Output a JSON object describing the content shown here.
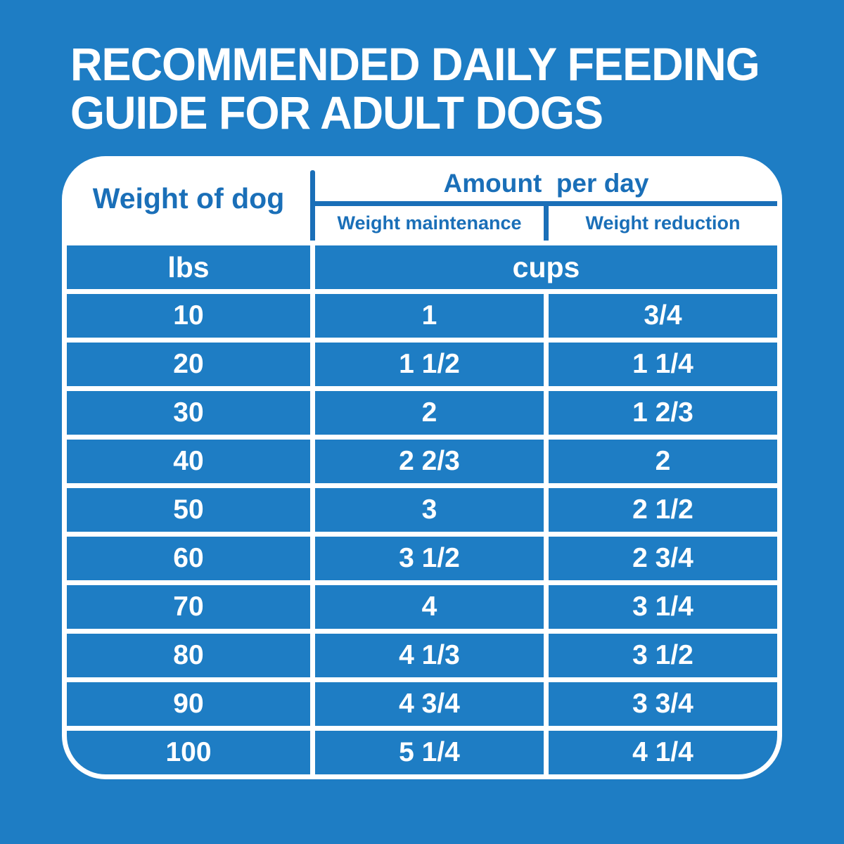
{
  "title": {
    "line1": "RECOMMENDED DAILY FEEDING",
    "line2": "GUIDE FOR ADULT DOGS"
  },
  "table": {
    "header": {
      "weight": "Weight of dog",
      "amount": "Amount  per day",
      "maintenance": "Weight maintenance",
      "reduction": "Weight reduction"
    },
    "units": {
      "weight": "lbs",
      "amount": "cups"
    },
    "rows": [
      {
        "weight": "10",
        "maintenance": "1",
        "reduction": "3/4"
      },
      {
        "weight": "20",
        "maintenance": "1 1/2",
        "reduction": "1 1/4"
      },
      {
        "weight": "30",
        "maintenance": "2",
        "reduction": "1 2/3"
      },
      {
        "weight": "40",
        "maintenance": "2 2/3",
        "reduction": "2"
      },
      {
        "weight": "50",
        "maintenance": "3",
        "reduction": "2 1/2"
      },
      {
        "weight": "60",
        "maintenance": "3 1/2",
        "reduction": "2 3/4"
      },
      {
        "weight": "70",
        "maintenance": "4",
        "reduction": "3 1/4"
      },
      {
        "weight": "80",
        "maintenance": "4 1/3",
        "reduction": "3 1/2"
      },
      {
        "weight": "90",
        "maintenance": "4 3/4",
        "reduction": "3 3/4"
      },
      {
        "weight": "100",
        "maintenance": "5 1/4",
        "reduction": "4 1/4"
      }
    ]
  },
  "colors": {
    "background_blue": "#1e7dc4",
    "header_ink_blue": "#1a6fb8",
    "card_white": "#ffffff",
    "row_text_white": "#ffffff"
  },
  "chart_data": {
    "type": "table",
    "title": "RECOMMENDED DAILY FEEDING GUIDE FOR ADULT DOGS",
    "columns": [
      "Weight of dog (lbs)",
      "Weight maintenance (cups)",
      "Weight reduction (cups)"
    ],
    "rows": [
      [
        10,
        "1",
        "3/4"
      ],
      [
        20,
        "1 1/2",
        "1 1/4"
      ],
      [
        30,
        "2",
        "1 2/3"
      ],
      [
        40,
        "2 2/3",
        "2"
      ],
      [
        50,
        "3",
        "2 1/2"
      ],
      [
        60,
        "3 1/2",
        "2 3/4"
      ],
      [
        70,
        "4",
        "3 1/4"
      ],
      [
        80,
        "4 1/3",
        "3 1/2"
      ],
      [
        90,
        "4 3/4",
        "3 3/4"
      ],
      [
        100,
        "5 1/4",
        "4 1/4"
      ]
    ]
  }
}
